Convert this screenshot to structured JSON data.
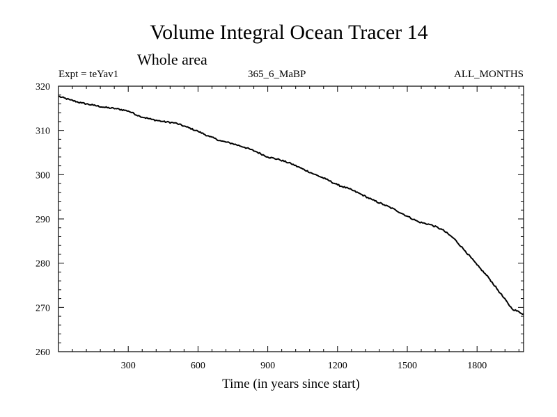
{
  "chart_data": {
    "type": "line",
    "title": "Volume Integral Ocean Tracer 14",
    "subtitle": "Whole area",
    "experiment": "Expt = teYav1",
    "run": "365_6_MaBP",
    "period": "ALL_MONTHS",
    "xlabel": "Time (in years since start)",
    "ylabel": "",
    "xlim": [
      0,
      2000
    ],
    "ylim": [
      260,
      320
    ],
    "xticks": [
      300,
      600,
      900,
      1200,
      1500,
      1800
    ],
    "yticks": [
      260,
      270,
      280,
      290,
      300,
      310,
      320
    ],
    "x_tick_labels": [
      "300",
      "600",
      "900",
      "1200",
      "1500",
      "1800"
    ],
    "y_tick_labels": [
      "260",
      "270",
      "280",
      "290",
      "300",
      "310",
      "320"
    ],
    "series": [
      {
        "name": "Volume Integral Ocean Tracer 14",
        "color": "#000000",
        "x": [
          0,
          50,
          100,
          150,
          200,
          250,
          300,
          350,
          400,
          450,
          500,
          550,
          600,
          650,
          700,
          750,
          800,
          850,
          900,
          950,
          1000,
          1050,
          1100,
          1150,
          1200,
          1250,
          1300,
          1350,
          1400,
          1450,
          1500,
          1550,
          1600,
          1650,
          1700,
          1750,
          1800,
          1850,
          1900,
          1950,
          2000
        ],
        "y": [
          317.7,
          316.9,
          316.2,
          315.7,
          315.2,
          314.9,
          314.4,
          313.2,
          312.5,
          312.0,
          311.7,
          310.8,
          309.8,
          308.6,
          307.6,
          307.0,
          306.2,
          305.2,
          304.0,
          303.4,
          302.5,
          301.3,
          300.1,
          299.0,
          297.7,
          296.8,
          295.6,
          294.3,
          293.2,
          292.0,
          290.6,
          289.3,
          288.7,
          287.6,
          285.6,
          282.7,
          279.6,
          276.7,
          273.2,
          269.7,
          268.5
        ]
      }
    ]
  }
}
